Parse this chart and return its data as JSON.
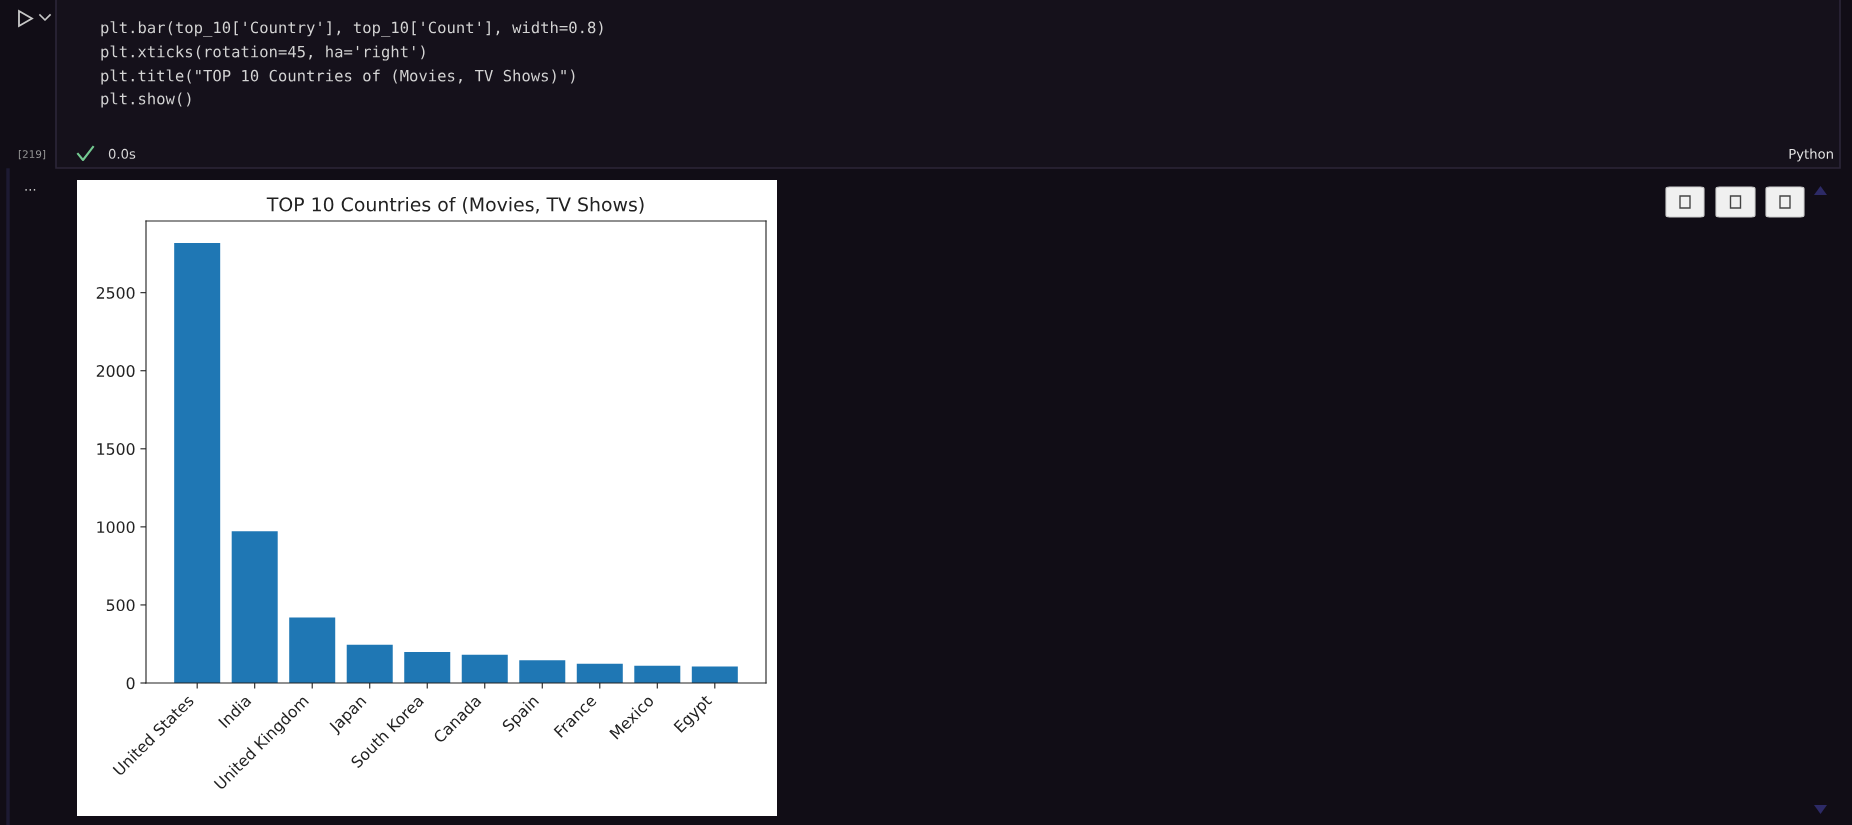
{
  "chart_data": {
    "type": "bar",
    "title": "TOP 10 Countries of (Movies, TV Shows)",
    "categories": [
      "United States",
      "India",
      "United Kingdom",
      "Japan",
      "South Korea",
      "Canada",
      "Spain",
      "France",
      "Mexico",
      "Egypt"
    ],
    "values": [
      2818,
      972,
      419,
      245,
      199,
      181,
      145,
      124,
      110,
      106
    ],
    "color": "#1f77b4",
    "ylim": [
      0,
      2959
    ],
    "yticks": [
      0,
      500,
      1000,
      1500,
      2000,
      2500
    ],
    "annotations": [
      "plt.bar(top_10['Country'], top_10['Count'], width=0.8)",
      "plt.xticks(rotation=45, ha='right')",
      "plt.title(\"TOP 10 Countries of (Movies, TV Shows)\")",
      "plt.show()",
      "[219]",
      "0.0s",
      "Python",
      "..."
    ]
  }
}
